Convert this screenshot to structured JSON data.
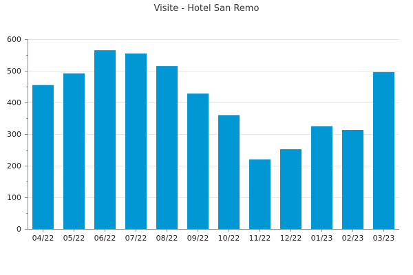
{
  "chart_data": {
    "type": "bar",
    "title": "Visite - Hotel San Remo",
    "xlabel": "",
    "ylabel": "",
    "categories": [
      "04/22",
      "05/22",
      "06/22",
      "07/22",
      "08/22",
      "09/22",
      "10/22",
      "11/22",
      "12/22",
      "01/23",
      "02/23",
      "03/23"
    ],
    "series": [
      {
        "values": [
          455,
          492,
          565,
          555,
          515,
          428,
          360,
          220,
          252,
          325,
          313,
          496
        ]
      }
    ],
    "ylim": [
      0,
      600
    ],
    "yticks": [
      0,
      100,
      200,
      300,
      400,
      500,
      600
    ],
    "grid": true,
    "legend": "none",
    "colors": {
      "bar": "#0097d4",
      "grid": "#e6e6e6",
      "axis": "#888888"
    }
  }
}
